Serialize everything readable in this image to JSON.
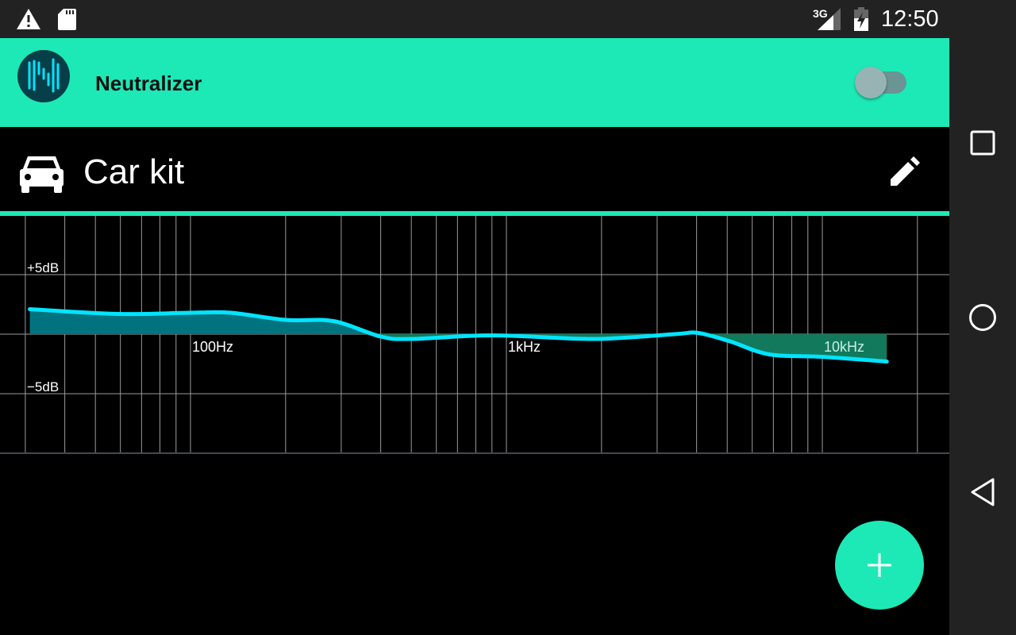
{
  "status_bar": {
    "time": "12:50",
    "network": "3G",
    "icons": [
      "warning-icon",
      "sd-card-icon",
      "signal-icon",
      "battery-charging-icon"
    ]
  },
  "app_bar": {
    "title": "Neutralizer",
    "enabled": false
  },
  "profile": {
    "name": "Car kit",
    "icon": "car-icon",
    "edit_icon": "pencil-icon"
  },
  "fab": {
    "icon": "plus-icon"
  },
  "nav": {
    "buttons": [
      "recents",
      "home",
      "back"
    ]
  },
  "colors": {
    "accent": "#1de9b6",
    "curve": "#00e5ff",
    "fill_positive": "#00737e",
    "fill_negative": "#12795c"
  },
  "chart_data": {
    "type": "area",
    "x_scale": "log",
    "xlim": [
      30,
      20000
    ],
    "ylim": [
      -10,
      10
    ],
    "x_ticks": [
      30,
      40,
      50,
      60,
      70,
      80,
      90,
      100,
      200,
      300,
      400,
      500,
      600,
      700,
      800,
      900,
      1000,
      2000,
      3000,
      4000,
      5000,
      6000,
      7000,
      8000,
      9000,
      10000,
      20000
    ],
    "x_tick_labels": [
      {
        "value": 100,
        "label": "100Hz"
      },
      {
        "value": 1000,
        "label": "1kHz"
      },
      {
        "value": 10000,
        "label": "10kHz"
      }
    ],
    "y_ticks": [
      -10,
      -5,
      0,
      5
    ],
    "y_tick_labels": [
      {
        "value": 5,
        "label": "+5dB"
      },
      {
        "value": -5,
        "label": "−5dB"
      }
    ],
    "grid": true,
    "x": [
      31,
      59,
      100,
      134,
      200,
      283,
      400,
      500,
      900,
      1900,
      3400,
      4050,
      5100,
      6800,
      10000,
      16000
    ],
    "y": [
      2.1,
      1.7,
      1.8,
      1.8,
      1.2,
      1.1,
      -0.2,
      -0.4,
      -0.1,
      -0.4,
      0.0,
      0.1,
      -0.6,
      -1.7,
      -1.9,
      -2.3
    ]
  }
}
